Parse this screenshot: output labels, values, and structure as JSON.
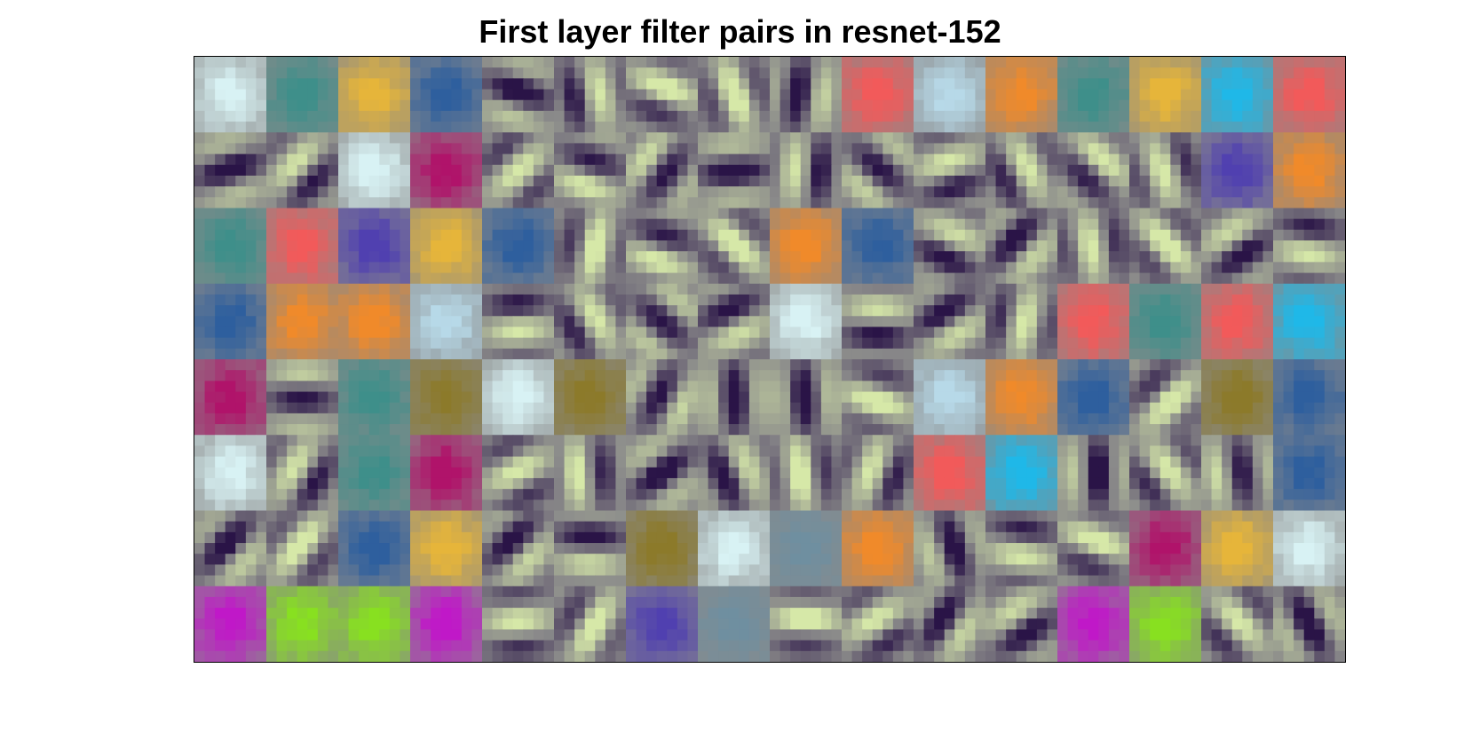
{
  "figure": {
    "title": "First layer filter pairs in resnet-152"
  },
  "mosaic": {
    "rows": 8,
    "cols": 16,
    "tile_grid": 7,
    "background_color": "#8a8a8a",
    "palette": {
      "gray": "#8a8a8a",
      "dark_purple": "#2a1447",
      "pale_green": "#d6e8a8",
      "teal": "#3e8f8a",
      "dark_teal": "#1f5d5c",
      "light_cyan": "#d8f2f4",
      "gold": "#e6b53a",
      "dark_brown": "#4a2e24",
      "orange": "#f08a2a",
      "blue": "#2e5f9e",
      "light_blue": "#b7d9e8",
      "magenta": "#b0136a",
      "violet": "#5040b0",
      "coral": "#f25a5a",
      "bright_cyan": "#1fb8e8",
      "bright_magenta": "#c018c8",
      "bright_green": "#88e020",
      "olive": "#8c7a2a",
      "slate": "#6f8fa0"
    },
    "tiles": [
      [
        "light_cyan",
        "teal",
        "gold",
        "blue",
        "dark_purple",
        "dark_purple",
        "pale_green",
        "pale_green",
        "dark_purple",
        "coral",
        "light_blue",
        "orange",
        "teal",
        "gold",
        "bright_cyan",
        "coral"
      ],
      [
        "dark_purple",
        "dark_purple",
        "light_cyan",
        "magenta",
        "dark_purple",
        "pale_green",
        "pale_green",
        "dark_purple",
        "dark_purple",
        "pale_green",
        "dark_purple",
        "dark_purple",
        "pale_green",
        "dark_purple",
        "violet",
        "orange"
      ],
      [
        "teal",
        "coral",
        "violet",
        "gold",
        "blue",
        "pale_green",
        "pale_green",
        "pale_green",
        "orange",
        "blue",
        "dark_purple",
        "dark_purple",
        "dark_purple",
        "pale_green",
        "dark_purple",
        "dark_purple"
      ],
      [
        "blue",
        "orange",
        "orange",
        "light_blue",
        "dark_purple",
        "dark_purple",
        "pale_green",
        "dark_purple",
        "light_cyan",
        "dark_purple",
        "dark_purple",
        "dark_purple",
        "coral",
        "teal",
        "coral",
        "bright_cyan"
      ],
      [
        "magenta",
        "pale_green",
        "teal",
        "olive",
        "light_cyan",
        "olive",
        "pale_green",
        "dark_purple",
        "dark_purple",
        "pale_green",
        "light_blue",
        "orange",
        "blue",
        "pale_green",
        "olive",
        "blue"
      ],
      [
        "light_cyan",
        "dark_purple",
        "teal",
        "magenta",
        "dark_purple",
        "pale_green",
        "dark_purple",
        "dark_purple",
        "pale_green",
        "dark_purple",
        "coral",
        "bright_cyan",
        "dark_purple",
        "dark_purple",
        "pale_green",
        "blue"
      ],
      [
        "dark_purple",
        "pale_green",
        "blue",
        "gold",
        "dark_purple",
        "dark_purple",
        "olive",
        "light_cyan",
        "slate",
        "orange",
        "dark_purple",
        "dark_purple",
        "pale_green",
        "magenta",
        "gold",
        "light_cyan"
      ],
      [
        "bright_magenta",
        "bright_green",
        "bright_green",
        "bright_magenta",
        "dark_purple",
        "pale_green",
        "violet",
        "slate",
        "pale_green",
        "dark_purple",
        "dark_purple",
        "dark_purple",
        "bright_magenta",
        "bright_green",
        "dark_purple",
        "dark_purple"
      ]
    ]
  }
}
